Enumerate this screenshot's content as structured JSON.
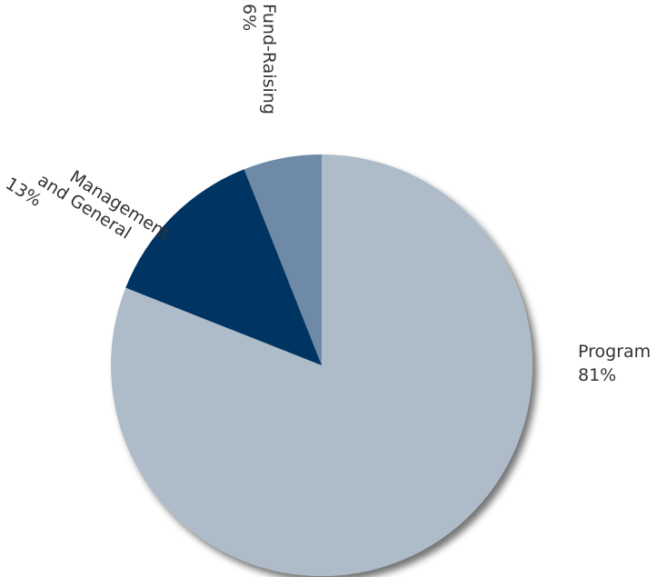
{
  "chart_data": {
    "type": "pie",
    "title": "",
    "start": "12 o'clock",
    "direction": "clockwise",
    "shadow": true,
    "slices": [
      {
        "label": "Program",
        "value": 81,
        "value_label": "81%",
        "color": "#aebbc9"
      },
      {
        "label": "Management and General",
        "label_lines": [
          "Management",
          "and General"
        ],
        "value": 13,
        "value_label": "13%",
        "color": "#063563"
      },
      {
        "label": "Fund-Raising",
        "value": 6,
        "value_label": "6%",
        "color": "#6e8aa6"
      }
    ]
  }
}
